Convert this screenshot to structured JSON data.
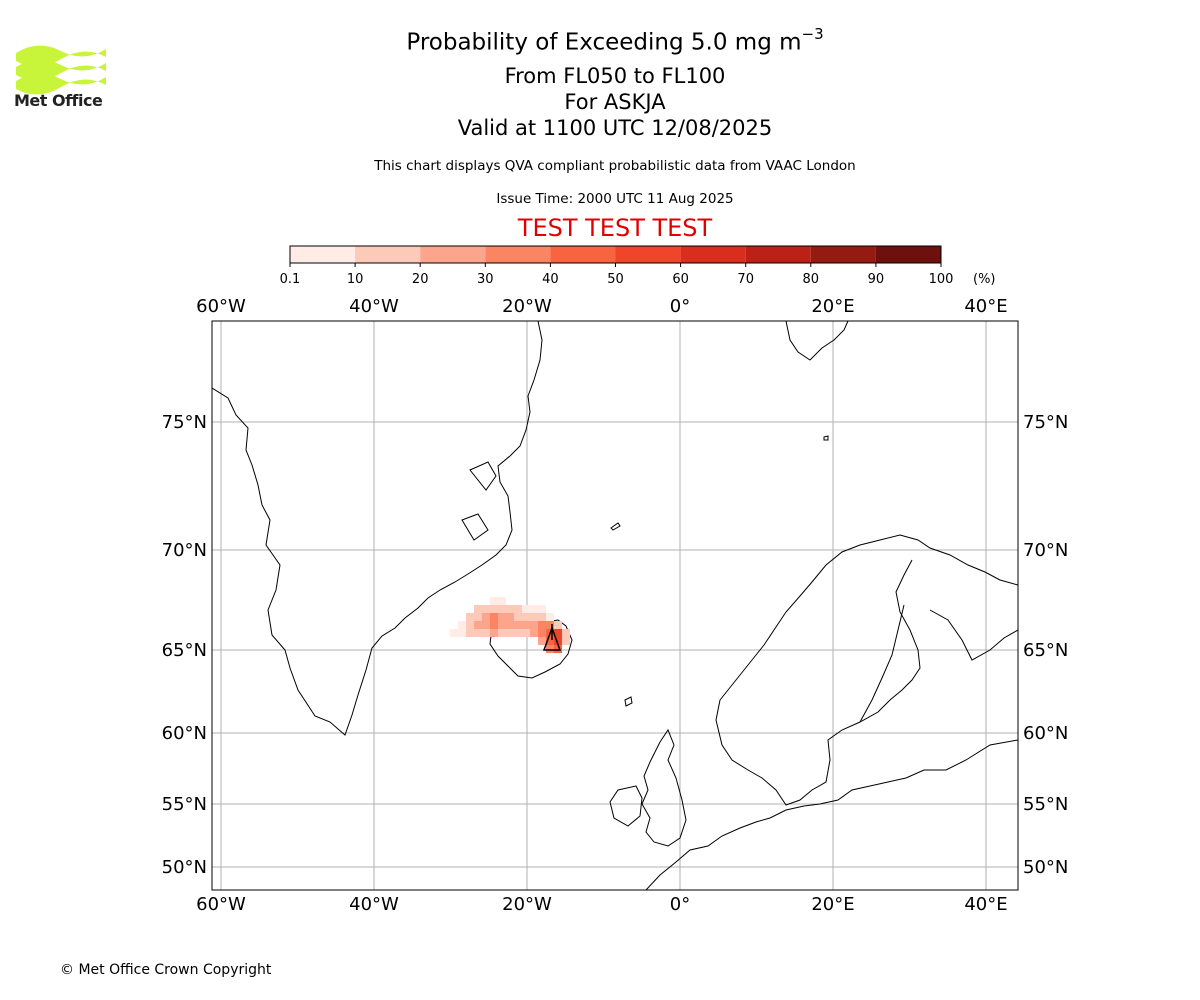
{
  "logo": {
    "text": "Met Office",
    "color": "#c8f43a"
  },
  "header": {
    "title_main": "Probability of Exceeding 5.0 mg m",
    "title_exp": "−3",
    "levels": "From FL050 to FL100",
    "volcano": "For ASKJA",
    "valid": "Valid at 1100 UTC 12/08/2025",
    "disclaimer": "This chart displays QVA compliant probabilistic data from VAAC London",
    "issue_time": "Issue Time: 2000 UTC 11 Aug 2025",
    "test_banner": "TEST TEST TEST",
    "test_color": "#e00000"
  },
  "colorbar": {
    "ticks": [
      "0.1",
      "10",
      "20",
      "30",
      "40",
      "50",
      "60",
      "70",
      "80",
      "90",
      "100"
    ],
    "unit": "(%)",
    "colors": [
      "#ffece6",
      "#fdc9b8",
      "#fca58c",
      "#fb8463",
      "#f8643f",
      "#f0452a",
      "#d92d1e",
      "#bb2116",
      "#951a12",
      "#6e100d"
    ]
  },
  "map": {
    "lon_labels": [
      "60°W",
      "40°W",
      "20°W",
      "0°",
      "20°E",
      "40°E"
    ],
    "lat_labels": [
      "75°N",
      "70°N",
      "65°N",
      "60°N",
      "55°N",
      "50°N"
    ],
    "volcano_marker": "volcano-triangle"
  },
  "footer": {
    "copyright": "© Met Office Crown Copyright"
  }
}
